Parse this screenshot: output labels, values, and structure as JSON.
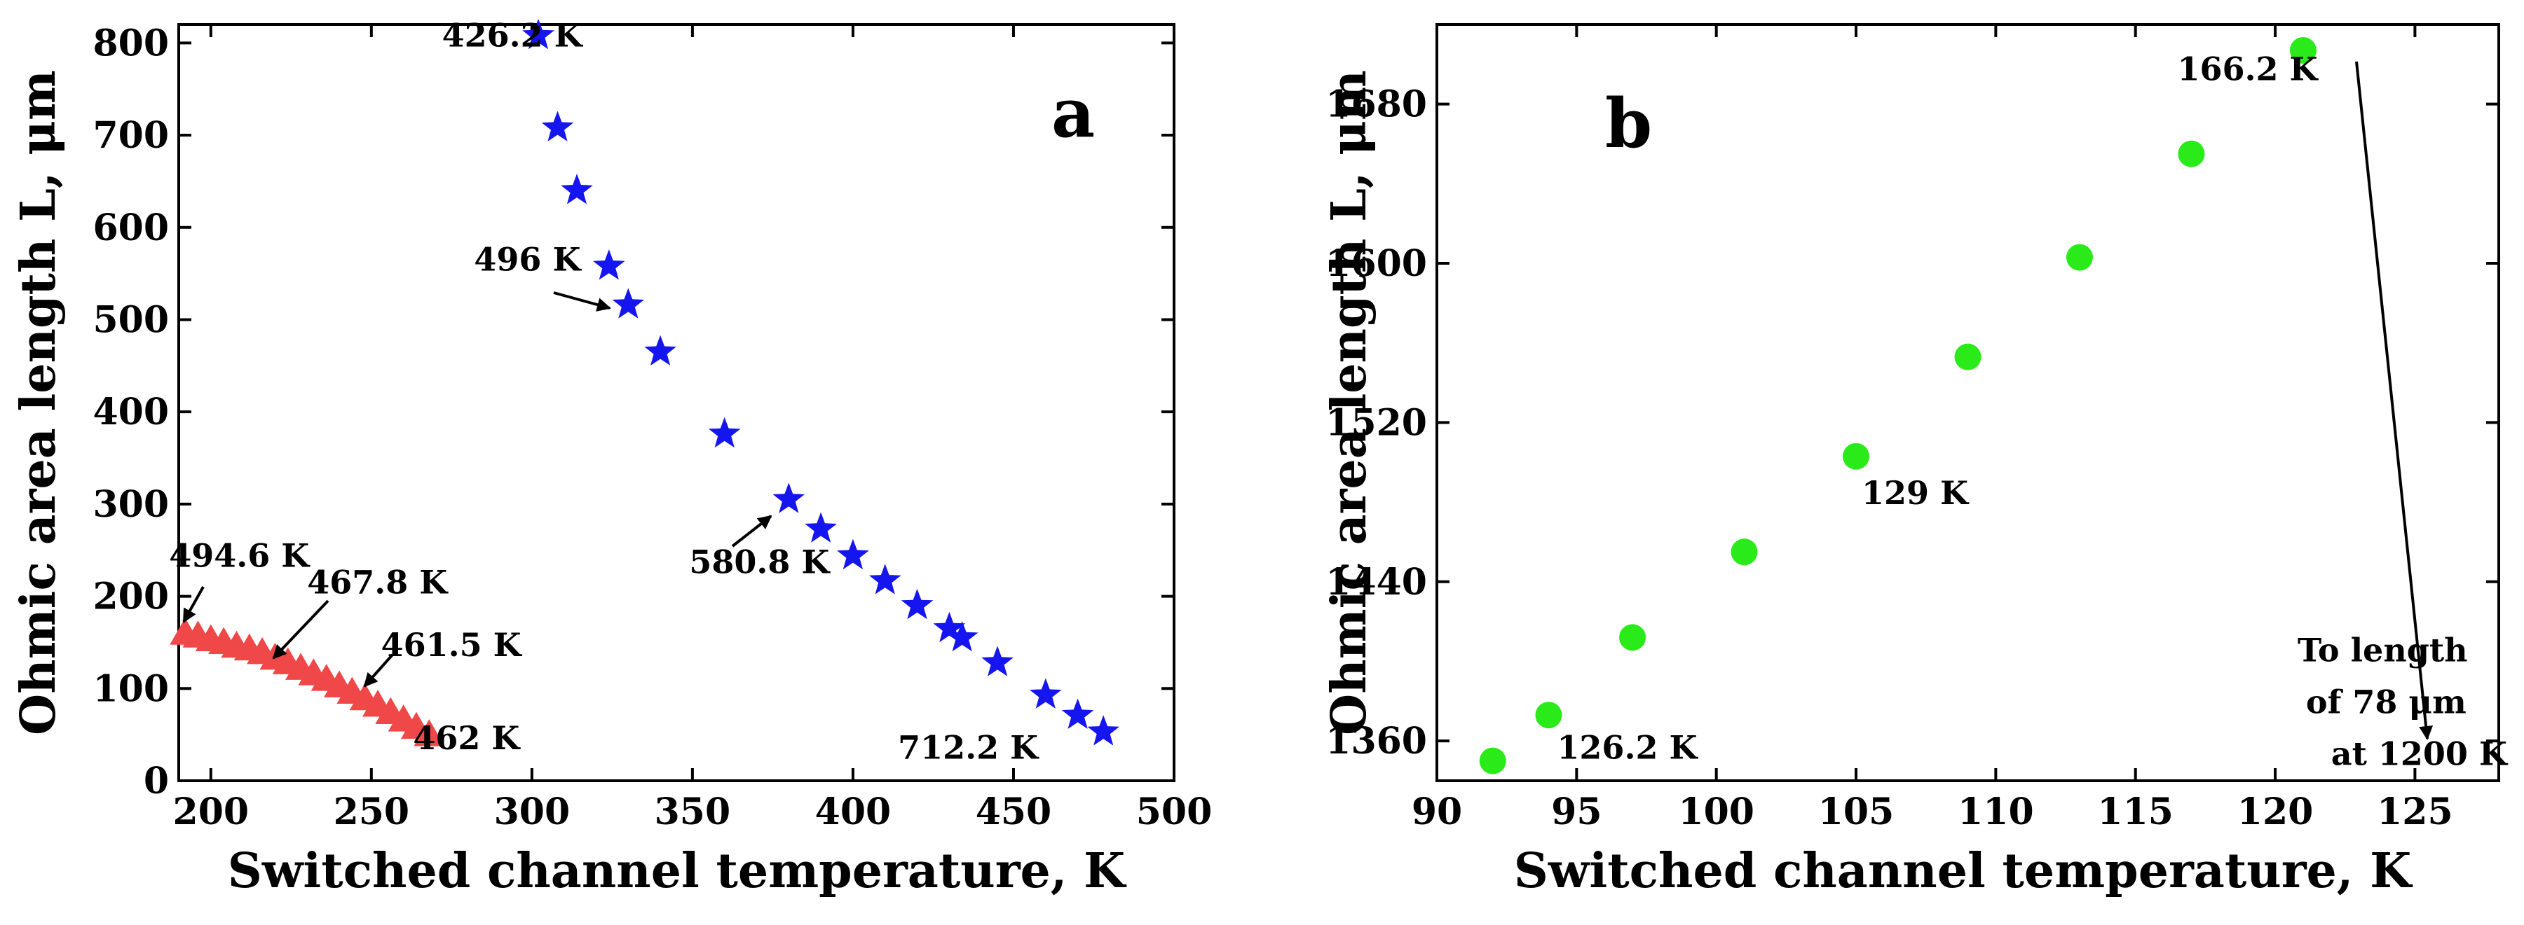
{
  "chart_data": [
    {
      "type": "scatter",
      "panel_label": "a",
      "xlabel": "Switched channel temperature,  K",
      "ylabel": "Ohmic area length  L,  μm",
      "xlim": [
        190,
        500
      ],
      "ylim": [
        0,
        820
      ],
      "xticks": [
        200,
        250,
        300,
        350,
        400,
        450,
        500
      ],
      "yticks": [
        0,
        100,
        200,
        300,
        400,
        500,
        600,
        700,
        800
      ],
      "grid": false,
      "series": [
        {
          "name": "blue stars",
          "marker": "star",
          "color": "#1515f0",
          "points": [
            [
              302,
              808
            ],
            [
              308,
              708
            ],
            [
              314,
              640
            ],
            [
              324,
              558
            ],
            [
              330,
              516
            ],
            [
              340,
              465
            ],
            [
              360,
              376
            ],
            [
              380,
              305
            ],
            [
              390,
              273
            ],
            [
              400,
              244
            ],
            [
              410,
              217
            ],
            [
              420,
              190
            ],
            [
              430,
              165
            ],
            [
              434,
              155
            ],
            [
              445,
              128
            ],
            [
              460,
              93
            ],
            [
              470,
              71
            ],
            [
              478,
              53
            ]
          ]
        },
        {
          "name": "red triangles",
          "marker": "triangle",
          "color": "#f04848",
          "points": [
            [
              192,
              160
            ],
            [
              196,
              157
            ],
            [
              200,
              153
            ],
            [
              204,
              150
            ],
            [
              208,
              146
            ],
            [
              212,
              143
            ],
            [
              216,
              139
            ],
            [
              220,
              133
            ],
            [
              224,
              128
            ],
            [
              228,
              122
            ],
            [
              232,
              116
            ],
            [
              236,
              110
            ],
            [
              240,
              103
            ],
            [
              244,
              96
            ],
            [
              248,
              89
            ],
            [
              252,
              82
            ],
            [
              256,
              74
            ],
            [
              260,
              66
            ],
            [
              264,
              58
            ],
            [
              268,
              50
            ]
          ]
        }
      ],
      "annotations": [
        {
          "text": "426.2 K",
          "x": 272,
          "y": 796
        },
        {
          "text": "496 K",
          "x": 282,
          "y": 553
        },
        {
          "text": "580.8 K",
          "x": 349,
          "y": 225
        },
        {
          "text": "494.6 K",
          "x": 187,
          "y": 232
        },
        {
          "text": "467.8 K",
          "x": 230,
          "y": 203
        },
        {
          "text": "461.5 K",
          "x": 253,
          "y": 135
        },
        {
          "text": "462 K",
          "x": 263,
          "y": 34
        },
        {
          "text": "712.2 K",
          "x": 414,
          "y": 24
        }
      ]
    },
    {
      "type": "scatter",
      "panel_label": "b",
      "xlabel": "Switched channel temperature,  K",
      "ylabel": "Ohmic area length  L,  μm",
      "xlim": [
        90,
        128
      ],
      "ylim": [
        1340,
        1720
      ],
      "xticks": [
        90,
        95,
        100,
        105,
        110,
        115,
        120,
        125
      ],
      "yticks": [
        1360,
        1440,
        1520,
        1600,
        1680
      ],
      "grid": false,
      "series": [
        {
          "name": "green circles",
          "marker": "circle",
          "color": "#2bea1a",
          "points": [
            [
              92,
              1350
            ],
            [
              94,
              1373
            ],
            [
              97,
              1412
            ],
            [
              101,
              1455
            ],
            [
              105,
              1503
            ],
            [
              109,
              1553
            ],
            [
              113,
              1603
            ],
            [
              117,
              1655
            ],
            [
              121,
              1707
            ]
          ]
        }
      ],
      "annotations": [
        {
          "text": "166.2 K",
          "x": 116.5,
          "y": 1692
        },
        {
          "text": "129 K",
          "x": 105.2,
          "y": 1479
        },
        {
          "text": "126.2 K",
          "x": 94.3,
          "y": 1351
        },
        {
          "text": "To  length",
          "x": 120.8,
          "y": 1400
        },
        {
          "text": "of  78 μm",
          "x": 121.1,
          "y": 1374
        },
        {
          "text": "at 1200 K",
          "x": 122.0,
          "y": 1348
        }
      ]
    }
  ]
}
